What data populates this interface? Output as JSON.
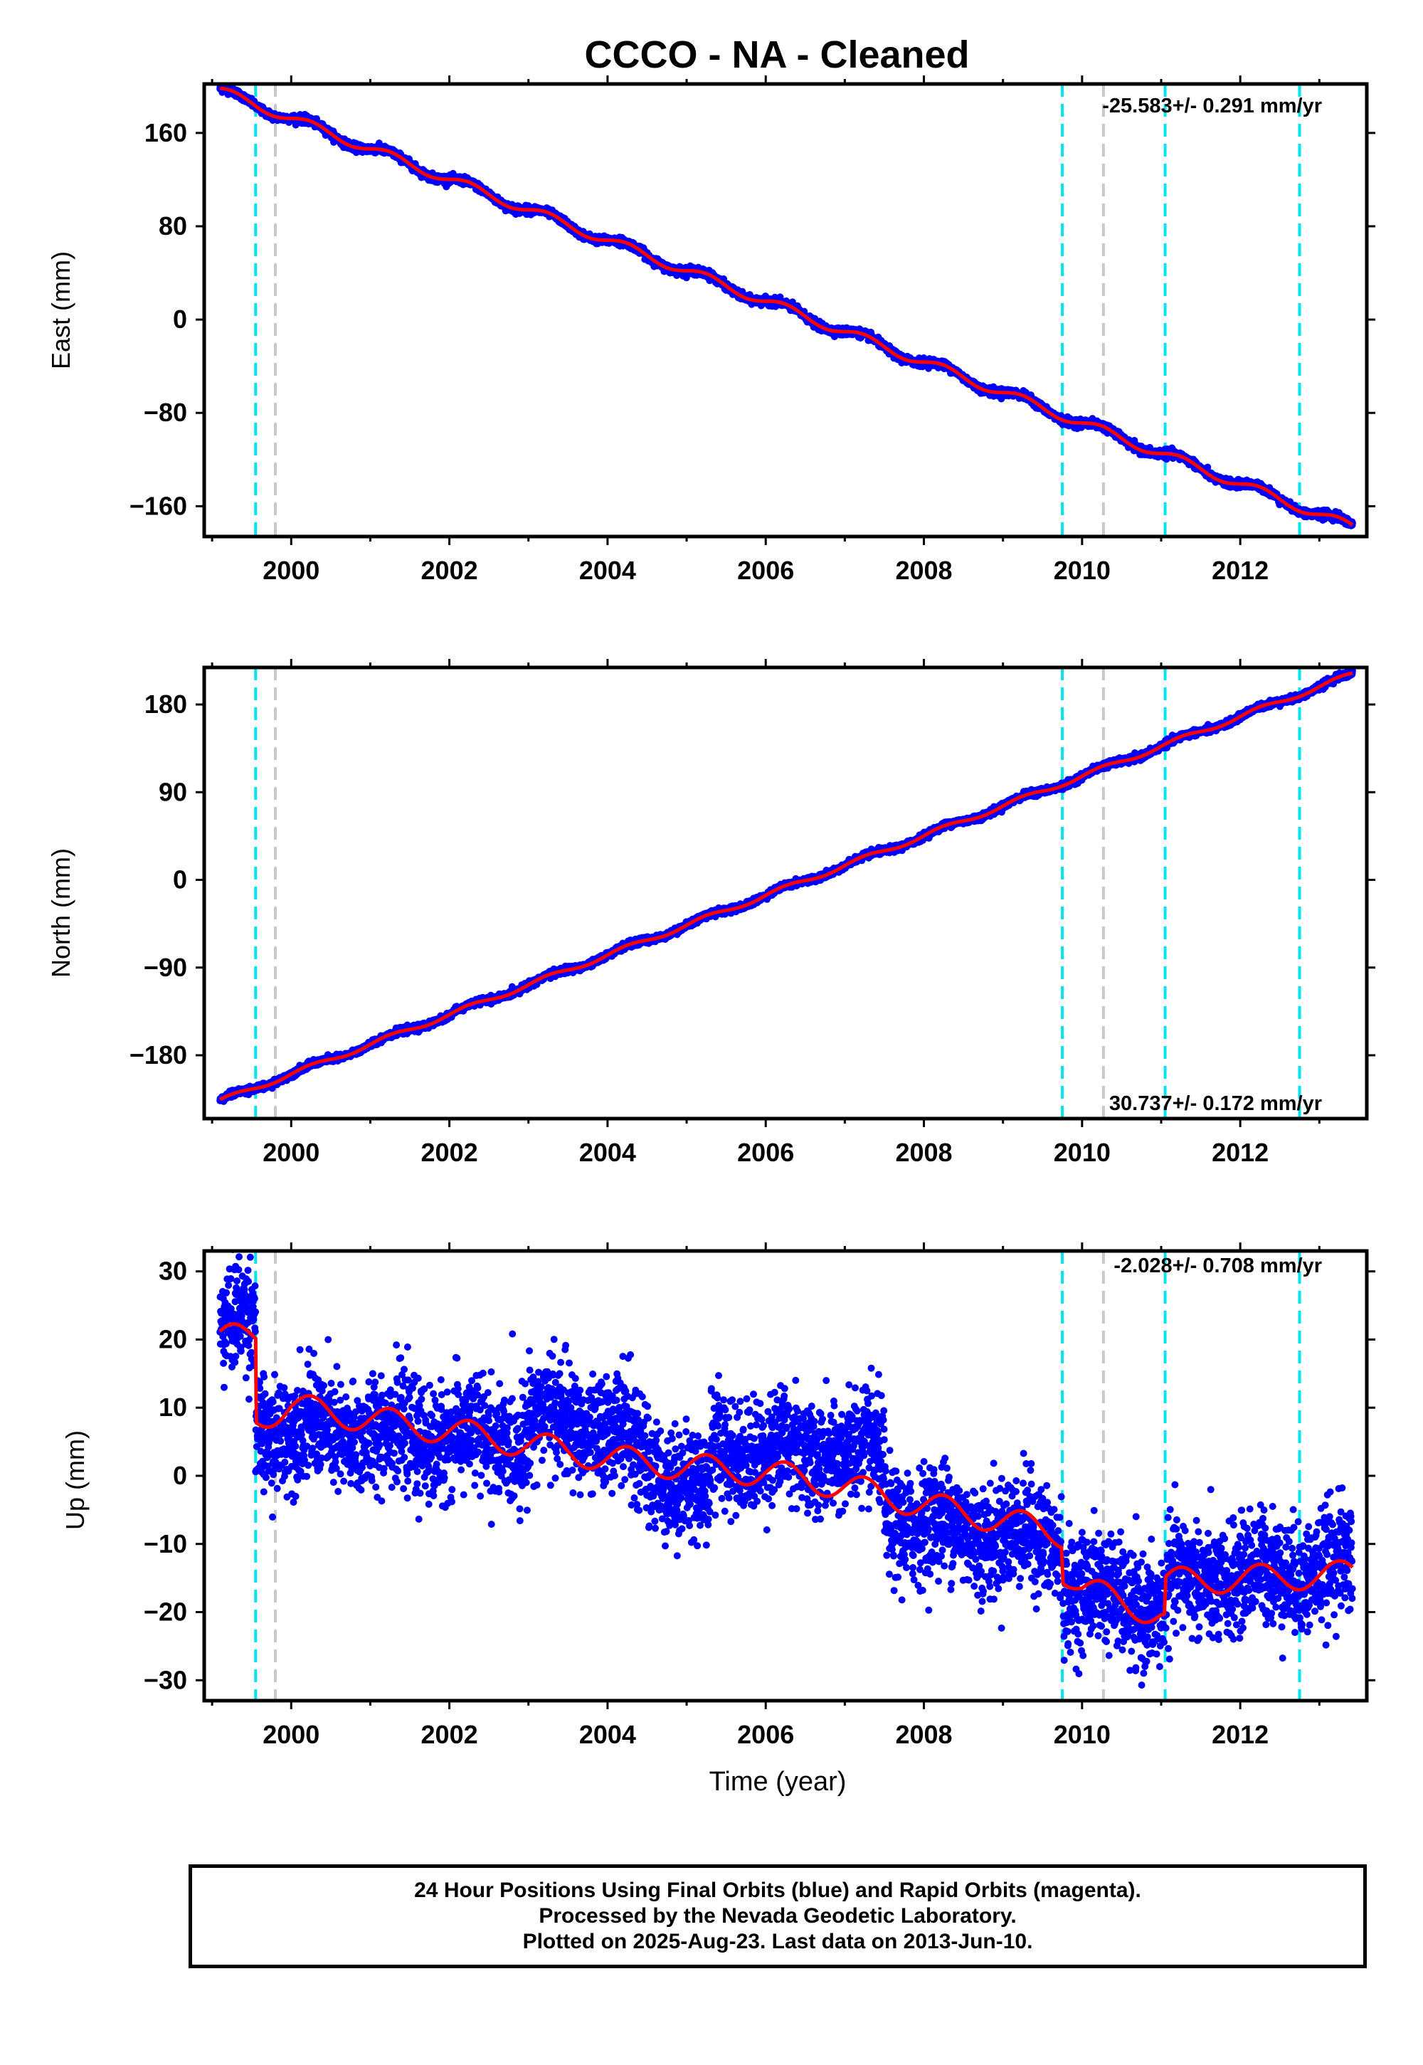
{
  "title": "CCCO  - NA - Cleaned",
  "xlabel": "Time (year)",
  "footer": {
    "line1": "24 Hour Positions Using Final Orbits (blue) and Rapid Orbits (magenta).",
    "line2": "Processed by the Nevada Geodetic Laboratory.",
    "line3": "Plotted on 2025-Aug-23. Last data on 2013-Jun-10."
  },
  "colors": {
    "final_orbits": "#0000ff",
    "rapid_orbits": "#ff00ff",
    "model": "#ff0000",
    "equipment_change": "#00e5ee",
    "other_event": "#c8c8c8"
  },
  "chart_data": [
    {
      "type": "scatter",
      "component": "east",
      "ylabel": "East (mm)",
      "rate_label": "-25.583+/- 0.291 mm/yr",
      "rate_position": "top-right",
      "xlim": [
        1998.9,
        2013.6
      ],
      "ylim": [
        -186,
        202
      ],
      "xticks": [
        2000,
        2002,
        2004,
        2006,
        2008,
        2010,
        2012
      ],
      "yticks": [
        160,
        80,
        0,
        -80,
        -160
      ],
      "grid": false,
      "start": [
        1999.1,
        196
      ],
      "end": [
        2013.42,
        -178
      ],
      "trend_rate_mm_per_yr": -25.583,
      "seasonal_amplitude_mm": 4,
      "noise_mm": 1.6,
      "offsets": [],
      "events_cyan": [
        1999.55,
        2009.75,
        2011.05,
        2012.75
      ],
      "events_gray": [
        1999.8,
        2010.27
      ]
    },
    {
      "type": "scatter",
      "component": "north",
      "ylabel": "North (mm)",
      "rate_label": "30.737+/- 0.172 mm/yr",
      "rate_position": "bottom-right",
      "xlim": [
        1998.9,
        2013.6
      ],
      "ylim": [
        -245,
        218
      ],
      "xticks": [
        2000,
        2002,
        2004,
        2006,
        2008,
        2010,
        2012
      ],
      "yticks": [
        180,
        90,
        0,
        -90,
        -180
      ],
      "grid": false,
      "start": [
        1999.1,
        -227
      ],
      "end": [
        2013.42,
        211
      ],
      "trend_rate_mm_per_yr": 30.737,
      "seasonal_amplitude_mm": 2.5,
      "noise_mm": 1.6,
      "offsets": [],
      "events_cyan": [
        1999.55,
        2009.75,
        2011.05,
        2012.75
      ],
      "events_gray": [
        1999.8,
        2010.27
      ]
    },
    {
      "type": "scatter",
      "component": "up",
      "ylabel": "Up (mm)",
      "rate_label": "-2.028+/- 0.708 mm/yr",
      "rate_position": "top-right",
      "xlim": [
        1998.9,
        2013.6
      ],
      "ylim": [
        -33,
        33
      ],
      "xticks": [
        2000,
        2002,
        2004,
        2006,
        2008,
        2010,
        2012
      ],
      "yticks": [
        30,
        20,
        10,
        0,
        -10,
        -20,
        -30
      ],
      "grid": false,
      "model_curve": {
        "x": [
          1999.1,
          1999.55,
          1999.56,
          2000.0,
          2001.0,
          2002.0,
          2003.0,
          2004.0,
          2005.0,
          2006.0,
          2007.0,
          2008.0,
          2009.0,
          2009.74,
          2009.76,
          2010.0,
          2011.0,
          2011.04,
          2011.06,
          2012.0,
          2013.42
        ],
        "y": [
          20,
          20.8,
          8.5,
          10.2,
          8.3,
          6.6,
          4.6,
          2.6,
          1.3,
          0.5,
          -1.5,
          -4.3,
          -6.5,
          -8.5,
          -13.8,
          -16.5,
          -20.4,
          -20.8,
          -15.5,
          -15.1,
          -14.4
        ]
      },
      "seasonal_amplitude_mm": 2,
      "data_segments": [
        {
          "x": [
            1999.1,
            1999.55
          ],
          "y": [
            21,
            24
          ],
          "noise": 4
        },
        {
          "x": [
            1999.55,
            2003.0
          ],
          "y": [
            7,
            5
          ],
          "noise": 4
        },
        {
          "x": [
            2003.0,
            2004.3
          ],
          "y": [
            9,
            6
          ],
          "noise": 4
        },
        {
          "x": [
            2004.3,
            2005.3
          ],
          "y": [
            3,
            -3
          ],
          "noise": 4
        },
        {
          "x": [
            2005.3,
            2007.5
          ],
          "y": [
            4,
            3
          ],
          "noise": 4
        },
        {
          "x": [
            2007.5,
            2009.74
          ],
          "y": [
            -6,
            -10
          ],
          "noise": 4
        },
        {
          "x": [
            2009.76,
            2011.04
          ],
          "y": [
            -16,
            -20
          ],
          "noise": 4
        },
        {
          "x": [
            2011.06,
            2013.42
          ],
          "y": [
            -16,
            -13
          ],
          "noise": 4
        }
      ],
      "events_cyan": [
        1999.55,
        2009.75,
        2011.05,
        2012.75
      ],
      "events_gray": [
        1999.8,
        2010.27
      ]
    }
  ]
}
